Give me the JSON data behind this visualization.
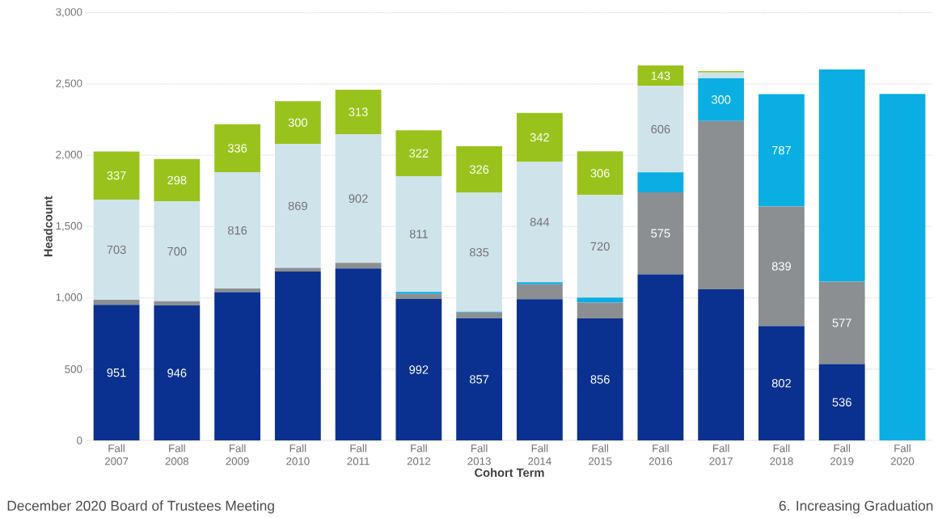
{
  "chart_data": {
    "type": "bar",
    "stacked": true,
    "ylabel": "Headcount",
    "xlabel": "Cohort Term",
    "categories": [
      "Fall 2007",
      "Fall 2008",
      "Fall 2009",
      "Fall 2010",
      "Fall 2011",
      "Fall 2012",
      "Fall 2013",
      "Fall 2014",
      "Fall 2015",
      "Fall 2016",
      "Fall 2017",
      "Fall 2018",
      "Fall 2019",
      "Fall 2020"
    ],
    "series": [
      {
        "color": "#0a318f",
        "values": [
          951,
          946,
          1040,
          1185,
          1205,
          992,
          857,
          990,
          856,
          1165,
          1060,
          802,
          536,
          0
        ],
        "value_labels": [
          "951",
          "946",
          null,
          null,
          null,
          "992",
          "857",
          null,
          "856",
          null,
          null,
          "802",
          "536",
          null
        ]
      },
      {
        "color": "#8c8f91",
        "values": [
          35,
          30,
          25,
          25,
          40,
          35,
          40,
          105,
          110,
          575,
          1180,
          839,
          577,
          0
        ],
        "value_labels": [
          null,
          null,
          null,
          null,
          null,
          null,
          null,
          null,
          null,
          "575",
          null,
          "839",
          "577",
          null
        ]
      },
      {
        "color": "#0aaee3",
        "values": [
          0,
          0,
          0,
          0,
          0,
          15,
          5,
          15,
          35,
          140,
          300,
          787,
          1490,
          2430
        ],
        "value_labels": [
          null,
          null,
          null,
          null,
          null,
          null,
          null,
          null,
          null,
          null,
          "300",
          "787",
          null,
          null
        ]
      },
      {
        "color": "#cfe3ea",
        "values": [
          703,
          700,
          816,
          869,
          902,
          811,
          835,
          844,
          720,
          606,
          40,
          0,
          0,
          0
        ],
        "value_labels": [
          "703",
          "700",
          "816",
          "869",
          "902",
          "811",
          "835",
          "844",
          "720",
          "606",
          null,
          null,
          null,
          null
        ]
      },
      {
        "color": "#99c31c",
        "values": [
          337,
          298,
          336,
          300,
          313,
          322,
          326,
          342,
          306,
          143,
          10,
          0,
          0,
          0
        ],
        "value_labels": [
          "337",
          "298",
          "336",
          "300",
          "313",
          "322",
          "326",
          "342",
          "306",
          "143",
          null,
          null,
          null,
          null
        ]
      }
    ],
    "ylim": [
      0,
      3000
    ],
    "yticks": [
      0,
      500,
      {
        "value": 1000,
        "label": "1,000"
      },
      {
        "value": 1500,
        "label": "1,500"
      },
      {
        "value": 2000,
        "label": "2,000"
      },
      {
        "value": 2500,
        "label": "2,500"
      },
      {
        "value": 3000,
        "label": "3,000"
      }
    ],
    "grid": "y",
    "annotations": [
      "December 2020 Board of Trustees Meeting",
      "6. Increasing Graduation"
    ]
  }
}
